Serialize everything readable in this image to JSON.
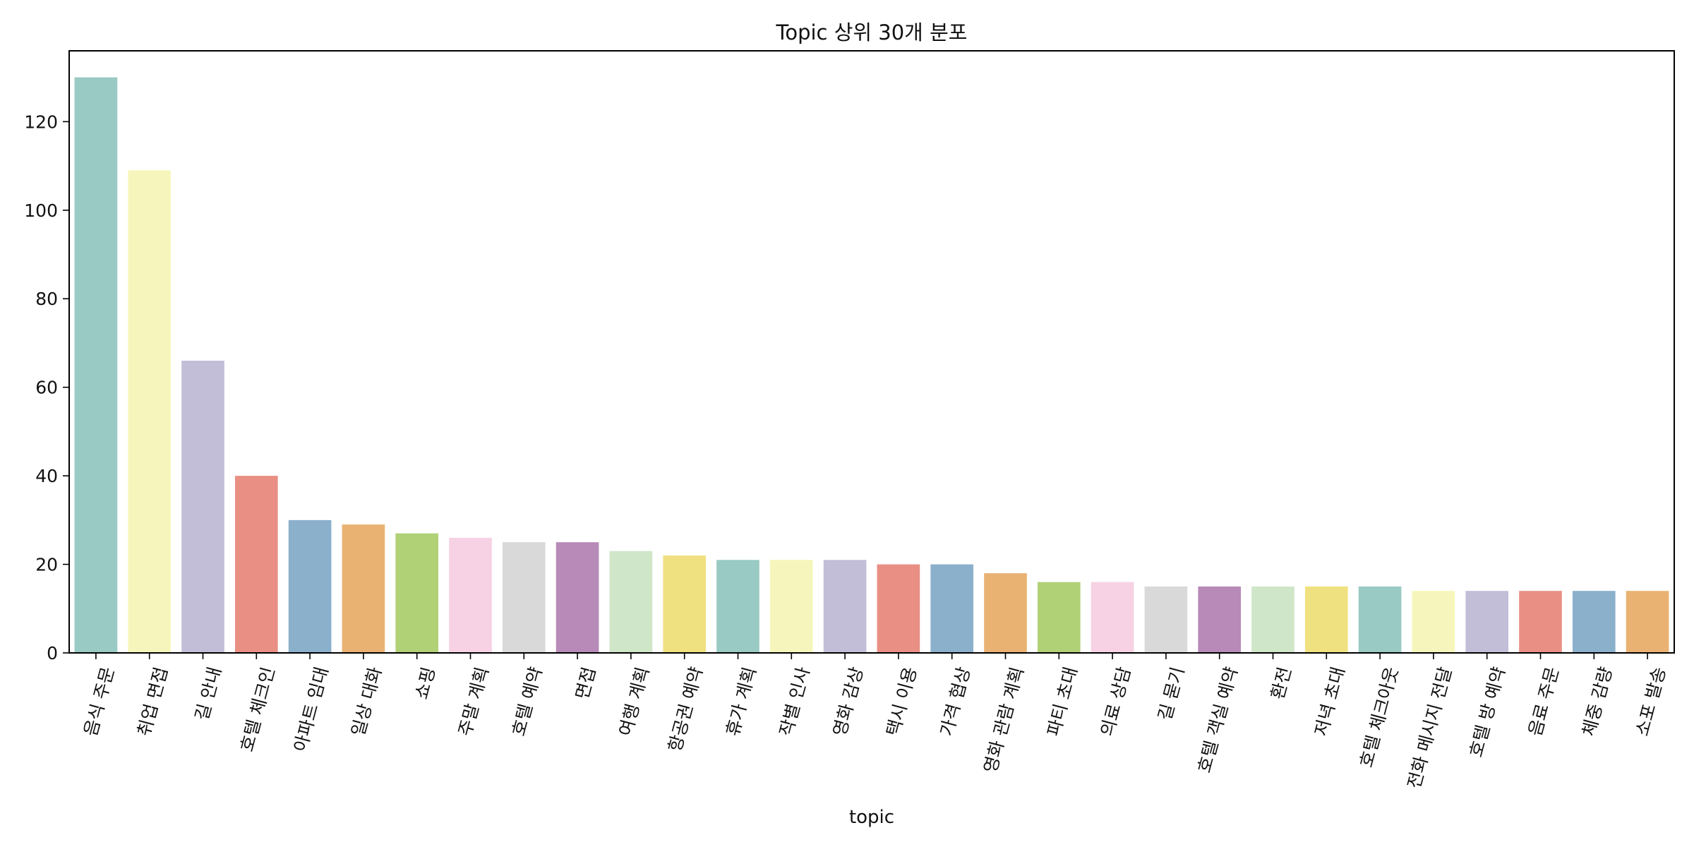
{
  "chart_data": {
    "type": "bar",
    "title": "Topic 상위 30개 분포",
    "xlabel": "topic",
    "ylabel": "",
    "ylim": [
      0,
      136
    ],
    "yticks": [
      0,
      20,
      40,
      60,
      80,
      100,
      120
    ],
    "grid": false,
    "legend": "none",
    "categories": [
      "음식 주문",
      "취업 면접",
      "길 안내",
      "호텔 체크인",
      "아파트 임대",
      "일상 대화",
      "쇼핑",
      "주말 계획",
      "호텔 예약",
      "면접",
      "여행 계획",
      "항공권 예약",
      "휴가 계획",
      "작별 인사",
      "영화 감상",
      "택시 이용",
      "가격 협상",
      "영화 관람 계획",
      "파티 초대",
      "의료 상담",
      "길 묻기",
      "호텔 객실 예약",
      "환전",
      "저녁 초대",
      "호텔 체크아웃",
      "전화 메시지 전달",
      "호텔 방 예약",
      "음료 주문",
      "체중 감량",
      "소포 발송"
    ],
    "values": [
      130,
      109,
      66,
      40,
      30,
      29,
      27,
      26,
      25,
      25,
      23,
      22,
      21,
      21,
      21,
      20,
      20,
      18,
      16,
      16,
      15,
      15,
      15,
      15,
      15,
      14,
      14,
      14,
      14,
      14
    ],
    "palette": [
      "#99cac3",
      "#f6f6bc",
      "#c2bed8",
      "#e98f84",
      "#8bb0cc",
      "#e9b273",
      "#b0d176",
      "#f6d2e4",
      "#d9d9d9",
      "#b78ab8",
      "#cfe6c9",
      "#f0e180"
    ]
  }
}
